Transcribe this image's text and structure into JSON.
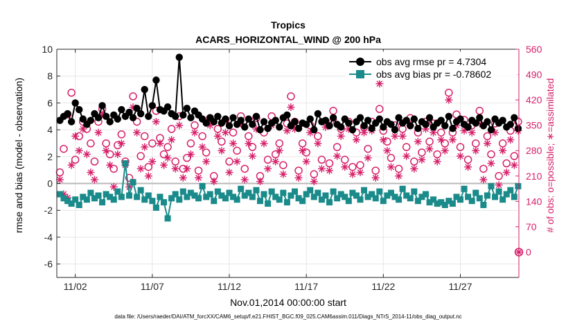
{
  "chart_data": {
    "type": "line",
    "title": "Tropics",
    "subtitle": "ACARS_HORIZONTAL_WIND @ 200 hPa",
    "xlabel": "Nov.01,2014 00:00:00 start",
    "ylabel_left": "rmse and bias (model - observation)",
    "ylabel_right": "# of obs: o=possible; ∗=assimilated",
    "footer": "data file: /Users/raeder/DAI/ATM_forcXX/CAM6_setup/f.e21.FHIST_BGC.f09_025.CAM6assim.011/Diags_NTrS_2014-11/obs_diag_output.nc",
    "xlim": [
      0.8,
      30.8
    ],
    "ylim_left": [
      -7,
      10
    ],
    "ylim_right": [
      -70,
      560
    ],
    "x_ticks": [
      2,
      7,
      12,
      17,
      22,
      27
    ],
    "x_tick_labels": [
      "11/02",
      "11/07",
      "11/12",
      "11/17",
      "11/22",
      "11/27"
    ],
    "y_left_ticks": [
      -6,
      -4,
      -2,
      0,
      2,
      4,
      6,
      8,
      10
    ],
    "y_right_ticks": [
      0,
      70,
      140,
      210,
      280,
      350,
      420,
      490,
      560
    ],
    "zero_line": 0,
    "colors": {
      "rmse": "#000000",
      "bias": "#1a8a8a",
      "count": "#d61f69",
      "zero": "#b8b8b8",
      "grid": "#e6e6e6"
    },
    "series": [
      {
        "name": "rmse",
        "legend": "obs avg rmse pr = 4.7304",
        "x_start": 1.0,
        "x_step": 0.25,
        "values": [
          4.7,
          5.0,
          5.2,
          4.6,
          6.0,
          5.5,
          4.8,
          4.4,
          4.7,
          5.2,
          4.9,
          5.8,
          5.0,
          4.6,
          5.1,
          4.8,
          5.5,
          5.0,
          5.3,
          4.9,
          5.6,
          5.2,
          7.0,
          5.0,
          5.8,
          7.7,
          5.5,
          5.4,
          5.7,
          5.2,
          5.0,
          9.4,
          5.1,
          5.6,
          4.9,
          5.4,
          5.1,
          4.8,
          4.5,
          4.9,
          4.6,
          5.0,
          4.5,
          4.8,
          4.3,
          4.9,
          4.4,
          4.7,
          4.2,
          4.8,
          4.4,
          5.0,
          4.0,
          4.6,
          4.1,
          4.5,
          4.7,
          4.2,
          4.9,
          5.1,
          4.3,
          4.6,
          4.1,
          4.5,
          4.4,
          4.8,
          4.0,
          5.2,
          4.6,
          4.7,
          4.3,
          4.9,
          4.4,
          4.2,
          4.8,
          4.5,
          4.0,
          4.6,
          4.9,
          4.3,
          4.7,
          4.1,
          4.5,
          4.8,
          4.2,
          4.6,
          4.4,
          4.0,
          4.9,
          4.5,
          4.7,
          4.3,
          4.8,
          4.1,
          4.6,
          4.4,
          4.9,
          4.2,
          4.5,
          4.7,
          4.3,
          5.0,
          4.1,
          4.6,
          4.8,
          4.4,
          4.2,
          4.7,
          4.5,
          4.9,
          4.3,
          4.6,
          4.0,
          4.8,
          4.5,
          4.7,
          4.2,
          4.4,
          4.9,
          4.1
        ]
      },
      {
        "name": "bias",
        "legend": "obs avg bias pr = -0.78602",
        "x_start": 1.0,
        "x_step": 0.25,
        "values": [
          -0.8,
          -1.1,
          -1.3,
          -1.5,
          -1.2,
          -1.6,
          -1.0,
          -1.2,
          -0.7,
          -1.1,
          -0.9,
          -1.4,
          -0.8,
          -1.0,
          -1.2,
          -0.6,
          -1.0,
          1.5,
          -0.9,
          0.1,
          -1.0,
          -0.5,
          -1.2,
          -0.9,
          -1.3,
          -1.8,
          -1.0,
          -1.4,
          -2.6,
          -1.1,
          -0.8,
          -1.2,
          -0.6,
          -1.0,
          -0.7,
          -0.9,
          -1.1,
          -0.2,
          -1.0,
          -0.8,
          -1.3,
          -0.6,
          -0.9,
          -1.1,
          -0.7,
          -1.0,
          -1.2,
          -0.4,
          -0.9,
          -0.7,
          -1.0,
          -0.5,
          -1.3,
          -0.8,
          -1.5,
          -0.6,
          -1.0,
          -1.2,
          -0.7,
          -1.4,
          -0.9,
          -0.6,
          -1.1,
          -1.3,
          -0.8,
          -0.5,
          -1.0,
          -0.7,
          -1.2,
          -0.9,
          -1.4,
          -0.6,
          -1.1,
          -0.8,
          -1.0,
          -1.3,
          -0.7,
          -0.9,
          -1.2,
          -0.5,
          -1.0,
          -0.8,
          -1.1,
          -0.6,
          -1.3,
          -0.9,
          -0.7,
          -1.0,
          -1.2,
          -0.4,
          -0.9,
          -1.1,
          -0.6,
          -1.3,
          -1.0,
          -0.8,
          -1.4,
          -1.2,
          -1.5,
          -1.4,
          -1.6,
          -1.3,
          -1.5,
          -1.0,
          -1.2,
          -0.4,
          -1.0,
          -1.3,
          -0.7,
          -1.1,
          -1.6,
          -0.9,
          -0.2,
          -1.0,
          -0.6,
          -1.2,
          -0.8,
          -0.5,
          -1.0,
          -0.2
        ]
      },
      {
        "name": "possible",
        "marker": "circle",
        "x_start": 1.0,
        "x_step": 0.25,
        "values": [
          220,
          285,
          380,
          440,
          255,
          320,
          360,
          340,
          300,
          250,
          360,
          395,
          300,
          270,
          230,
          295,
          325,
          250,
          205,
          430,
          360,
          265,
          320,
          235,
          300,
          390,
          315,
          270,
          290,
          340,
          250,
          375,
          230,
          260,
          300,
          350,
          225,
          320,
          275,
          370,
          210,
          340,
          305,
          365,
          250,
          330,
          280,
          375,
          230,
          320,
          290,
          370,
          210,
          330,
          255,
          375,
          270,
          300,
          240,
          355,
          430,
          360,
          225,
          300,
          275,
          350,
          215,
          320,
          255,
          360,
          245,
          390,
          290,
          340,
          255,
          360,
          235,
          330,
          240,
          345,
          285,
          360,
          225,
          395,
          335,
          305,
          260,
          350,
          230,
          340,
          290,
          370,
          250,
          330,
          275,
          360,
          305,
          355,
          270,
          330,
          300,
          440,
          330,
          380,
          290,
          365,
          255,
          350,
          300,
          390,
          230,
          320,
          270,
          355,
          210,
          300,
          245,
          335,
          265,
          360
        ]
      },
      {
        "name": "assimilated",
        "marker": "star",
        "x_start": 1.0,
        "x_step": 0.25,
        "values": [
          200,
          160,
          150,
          240,
          320,
          280,
          340,
          270,
          220,
          200,
          330,
          380,
          280,
          240,
          180,
          270,
          300,
          240,
          180,
          400,
          330,
          230,
          290,
          210,
          250,
          360,
          300,
          240,
          260,
          310,
          230,
          350,
          205,
          230,
          270,
          330,
          205,
          290,
          250,
          350,
          195,
          320,
          280,
          330,
          220,
          300,
          250,
          355,
          200,
          300,
          265,
          340,
          195,
          300,
          230,
          350,
          250,
          280,
          215,
          335,
          400,
          340,
          205,
          280,
          250,
          330,
          195,
          300,
          230,
          345,
          225,
          365,
          265,
          320,
          235,
          340,
          215,
          310,
          220,
          330,
          260,
          335,
          205,
          465,
          310,
          280,
          235,
          320,
          210,
          320,
          265,
          350,
          230,
          305,
          255,
          340,
          285,
          330,
          250,
          310,
          280,
          420,
          310,
          350,
          265,
          335,
          235,
          330,
          280,
          355,
          200,
          300,
          245,
          330,
          185,
          280,
          220,
          310,
          240,
          335
        ]
      }
    ]
  }
}
